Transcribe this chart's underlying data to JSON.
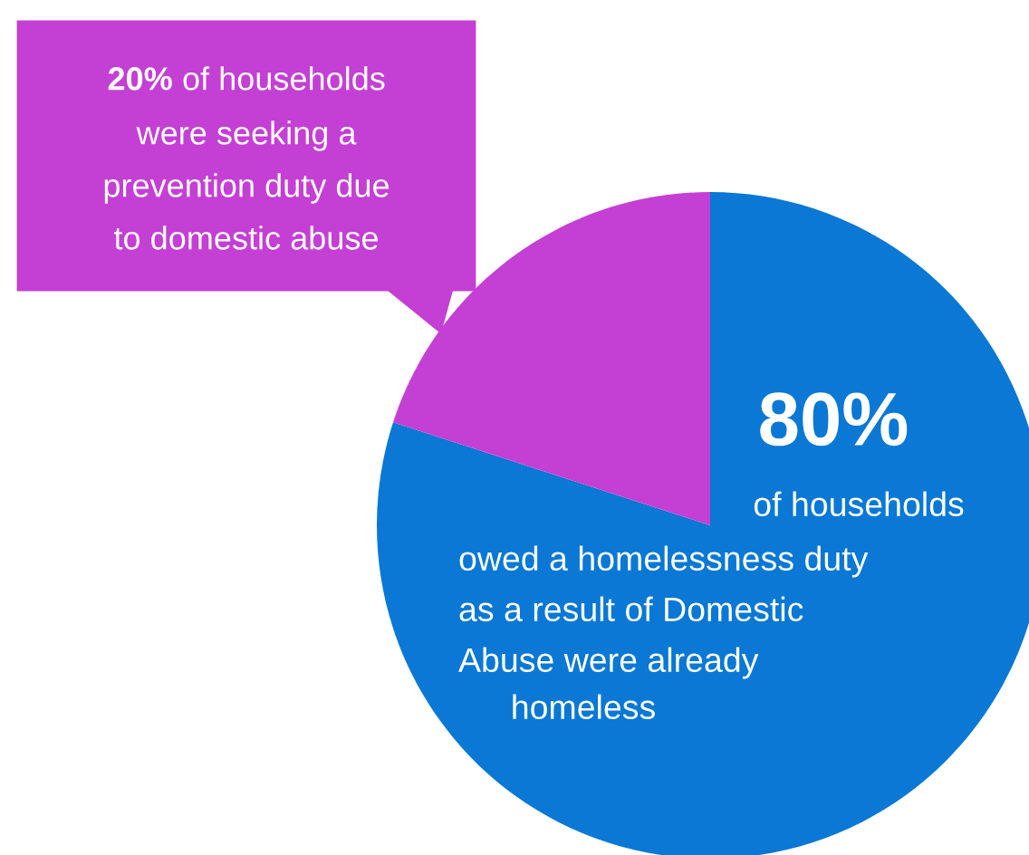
{
  "chart_data": {
    "type": "pie",
    "categories": [
      null,
      null
    ],
    "values": [
      80,
      20
    ],
    "colors": [
      "#0a78d4",
      "#c43fd4"
    ],
    "value_labels": [
      "80%",
      null
    ],
    "annotations": [
      "of households\nowed a homelessness duty\nas a result of Domestic\nAbuse were already\nhomeless",
      "20% of households\nwere seeking a\nprevention duty due\nto domestic abuse"
    ],
    "legend": false
  }
}
